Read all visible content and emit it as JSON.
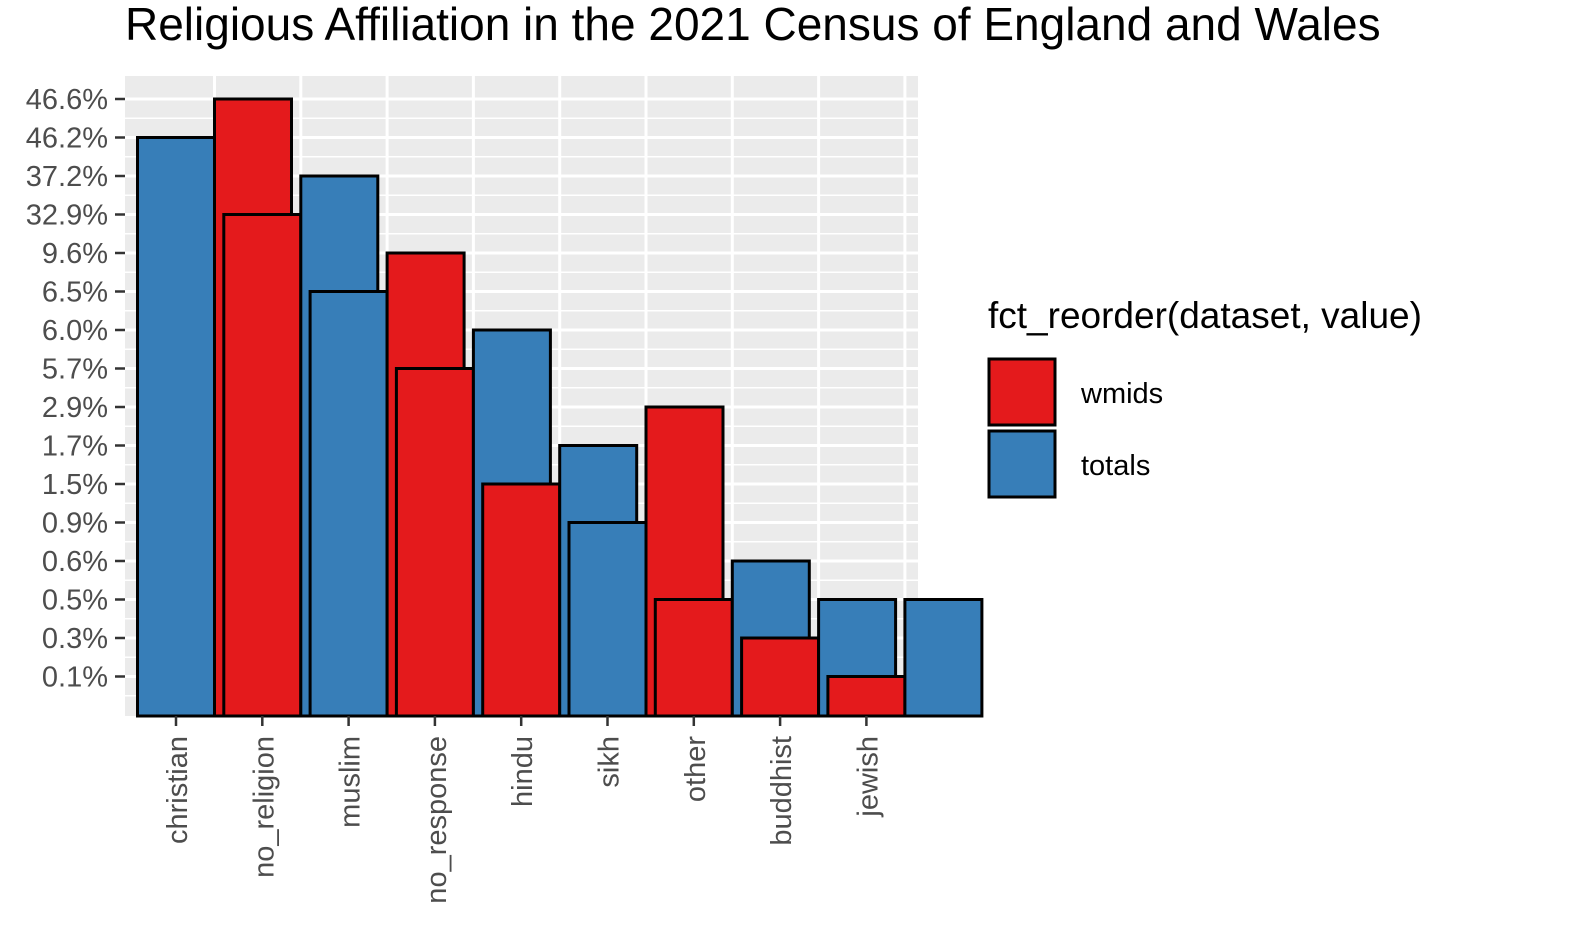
{
  "chart_data": {
    "type": "bar",
    "title": "Religious Affiliation in the 2021 Census of England and Wales",
    "xlabel": "",
    "ylabel": "",
    "y_scale": "discrete percentage labels (rank order)",
    "y_tick_labels": [
      "0.1%",
      "0.3%",
      "0.5%",
      "0.6%",
      "0.9%",
      "1.5%",
      "1.7%",
      "2.9%",
      "5.7%",
      "6.0%",
      "6.5%",
      "9.6%",
      "32.9%",
      "37.2%",
      "46.2%",
      "46.6%"
    ],
    "categories": [
      "christian",
      "no_religion",
      "muslim",
      "no_response",
      "hindu",
      "sikh",
      "other",
      "buddhist",
      "jewish"
    ],
    "grid": true,
    "legend": {
      "title": "fct_reorder(dataset, value)",
      "placement": "right",
      "entries": [
        {
          "name": "wmids",
          "color": "#e41a1c"
        },
        {
          "name": "totals",
          "color": "#377eb8"
        }
      ]
    },
    "groups": [
      {
        "category": "christian",
        "bars": [
          {
            "series": "totals",
            "label": "46.2%"
          },
          {
            "series": "wmids",
            "label": "46.6%"
          }
        ]
      },
      {
        "category": "no_religion",
        "bars": [
          {
            "series": "wmids",
            "label": "32.9%"
          },
          {
            "series": "totals",
            "label": "37.2%"
          }
        ]
      },
      {
        "category": "muslim",
        "bars": [
          {
            "series": "totals",
            "label": "6.5%"
          },
          {
            "series": "wmids",
            "label": "9.6%"
          }
        ]
      },
      {
        "category": "no_response",
        "bars": [
          {
            "series": "wmids",
            "label": "5.7%"
          },
          {
            "series": "totals",
            "label": "6.0%"
          }
        ]
      },
      {
        "category": "hindu",
        "bars": [
          {
            "series": "wmids",
            "label": "1.5%"
          },
          {
            "series": "totals",
            "label": "1.7%"
          }
        ]
      },
      {
        "category": "sikh",
        "bars": [
          {
            "series": "totals",
            "label": "0.9%"
          },
          {
            "series": "wmids",
            "label": "2.9%"
          }
        ]
      },
      {
        "category": "other",
        "bars": [
          {
            "series": "wmids",
            "label": "0.5%"
          },
          {
            "series": "totals",
            "label": "0.6%"
          }
        ]
      },
      {
        "category": "buddhist",
        "bars": [
          {
            "series": "wmids",
            "label": "0.3%"
          },
          {
            "series": "totals",
            "label": "0.5%"
          }
        ]
      },
      {
        "category": "jewish",
        "bars": [
          {
            "series": "wmids",
            "label": "0.1%"
          },
          {
            "series": "totals",
            "label": "0.5%"
          }
        ]
      }
    ],
    "colors": {
      "wmids": "#e41a1c",
      "totals": "#377eb8",
      "panel": "#ebebeb",
      "grid": "#ffffff"
    }
  }
}
